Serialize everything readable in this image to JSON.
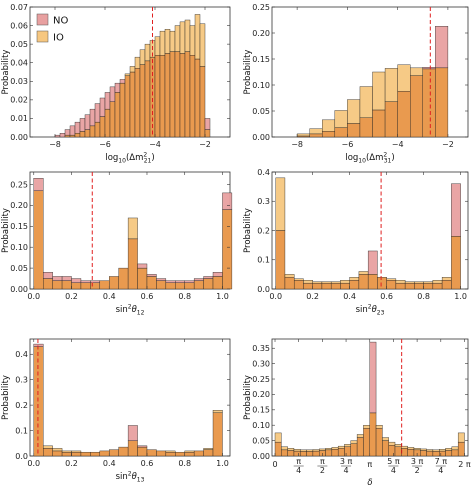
{
  "legend": {
    "entries": [
      {
        "name": "NO",
        "color": "#e8a0a0"
      },
      {
        "name": "IO",
        "color": "#f6c780"
      }
    ]
  },
  "colors": {
    "no_fill": "#e8a0a0",
    "io_fill": "#f6c780",
    "overlap_fill": "#e99a4f",
    "bar_edge": "#222222",
    "ref_line": "#e02020"
  },
  "chart_data": [
    {
      "type": "bar",
      "position": "top-left",
      "ylabel": "Probability",
      "xlabel": "log10(Δm²21)",
      "xlim": [
        -9.0,
        -1.0
      ],
      "ylim": [
        0,
        0.07
      ],
      "xticks": [
        -8,
        -6,
        -4,
        -2
      ],
      "xtick_labels": [
        "−8",
        "−6",
        "−4",
        "−2"
      ],
      "yticks": [
        0,
        0.01,
        0.02,
        0.03,
        0.04,
        0.05,
        0.06,
        0.07
      ],
      "ytick_labels": [
        "0.00",
        "0.01",
        "0.02",
        "0.03",
        "0.04",
        "0.05",
        "0.06",
        "0.07"
      ],
      "bin_edges": [
        -8.0,
        -7.8,
        -7.6,
        -7.4,
        -7.2,
        -7.0,
        -6.8,
        -6.6,
        -6.4,
        -6.2,
        -6.0,
        -5.8,
        -5.6,
        -5.4,
        -5.2,
        -5.0,
        -4.8,
        -4.6,
        -4.4,
        -4.2,
        -4.0,
        -3.8,
        -3.6,
        -3.4,
        -3.2,
        -3.0,
        -2.8,
        -2.6,
        -2.4,
        -2.2,
        -2.0,
        -1.8
      ],
      "series": [
        {
          "name": "NO",
          "values": [
            0.001,
            0.002,
            0.004,
            0.006,
            0.008,
            0.01,
            0.012,
            0.015,
            0.018,
            0.021,
            0.024,
            0.027,
            0.029,
            0.031,
            0.033,
            0.035,
            0.037,
            0.039,
            0.041,
            0.043,
            0.044,
            0.044,
            0.045,
            0.046,
            0.046,
            0.045,
            0.046,
            0.044,
            0.042,
            0.038,
            0.01
          ]
        },
        {
          "name": "IO",
          "values": [
            0.0,
            0.0,
            0.001,
            0.001,
            0.002,
            0.003,
            0.004,
            0.006,
            0.008,
            0.011,
            0.015,
            0.019,
            0.024,
            0.029,
            0.034,
            0.038,
            0.043,
            0.047,
            0.05,
            0.052,
            0.054,
            0.057,
            0.058,
            0.057,
            0.06,
            0.062,
            0.063,
            0.06,
            0.066,
            0.061,
            0.004
          ]
        }
      ],
      "ref_line_x": -4.1
    },
    {
      "type": "bar",
      "position": "top-right",
      "ylabel": "Probability",
      "xlabel": "log10(Δm²31)",
      "xlim": [
        -9.0,
        -1.2
      ],
      "ylim": [
        0,
        0.25
      ],
      "xticks": [
        -8,
        -6,
        -4,
        -2
      ],
      "xtick_labels": [
        "−8",
        "−6",
        "−4",
        "−2"
      ],
      "yticks": [
        0,
        0.05,
        0.1,
        0.15,
        0.2,
        0.25
      ],
      "ytick_labels": [
        "0.00",
        "0.05",
        "0.10",
        "0.15",
        "0.20",
        "0.25"
      ],
      "bin_edges": [
        -8.0,
        -7.5,
        -7.0,
        -6.5,
        -6.0,
        -5.5,
        -5.0,
        -4.5,
        -4.0,
        -3.5,
        -3.0,
        -2.5,
        -2.0
      ],
      "series": [
        {
          "name": "NO",
          "values": [
            0.002,
            0.006,
            0.011,
            0.018,
            0.026,
            0.037,
            0.052,
            0.068,
            0.088,
            0.118,
            0.134,
            0.213
          ]
        },
        {
          "name": "IO",
          "values": [
            0.006,
            0.016,
            0.033,
            0.051,
            0.072,
            0.097,
            0.125,
            0.132,
            0.139,
            0.133,
            0.131,
            0.133
          ]
        }
      ],
      "ref_line_x": -2.7
    },
    {
      "type": "bar",
      "position": "middle-left",
      "ylabel": "Probability",
      "xlabel": "sin²θ12",
      "xlim": [
        -0.02,
        1.04
      ],
      "ylim": [
        0,
        0.28
      ],
      "xticks": [
        0,
        0.2,
        0.4,
        0.6,
        0.8,
        1.0
      ],
      "xtick_labels": [
        "0.0",
        "0.2",
        "0.4",
        "0.6",
        "0.8",
        "1.0"
      ],
      "yticks": [
        0,
        0.05,
        0.1,
        0.15,
        0.2,
        0.25
      ],
      "ytick_labels": [
        "0.00",
        "0.05",
        "0.10",
        "0.15",
        "0.20",
        "0.25"
      ],
      "bin_edges": [
        0.0,
        0.05,
        0.1,
        0.15,
        0.2,
        0.25,
        0.3,
        0.35,
        0.4,
        0.45,
        0.5,
        0.55,
        0.6,
        0.65,
        0.7,
        0.75,
        0.8,
        0.85,
        0.9,
        0.95,
        1.0,
        1.05
      ],
      "series": [
        {
          "name": "NO",
          "values": [
            0.265,
            0.04,
            0.03,
            0.03,
            0.025,
            0.02,
            0.02,
            0.02,
            0.03,
            0.05,
            0.12,
            0.06,
            0.035,
            0.025,
            0.02,
            0.02,
            0.02,
            0.025,
            0.03,
            0.04,
            0.23
          ]
        },
        {
          "name": "IO",
          "values": [
            0.235,
            0.025,
            0.02,
            0.02,
            0.015,
            0.015,
            0.015,
            0.02,
            0.03,
            0.05,
            0.17,
            0.05,
            0.03,
            0.02,
            0.015,
            0.015,
            0.015,
            0.02,
            0.025,
            0.03,
            0.19
          ]
        }
      ],
      "ref_line_x": 0.31
    },
    {
      "type": "bar",
      "position": "middle-right",
      "ylabel": "Probability",
      "xlabel": "sin²θ23",
      "xlim": [
        -0.02,
        1.04
      ],
      "ylim": [
        0,
        0.4
      ],
      "xticks": [
        0,
        0.2,
        0.4,
        0.6,
        0.8,
        1.0
      ],
      "xtick_labels": [
        "0.0",
        "0.2",
        "0.4",
        "0.6",
        "0.8",
        "1.0"
      ],
      "yticks": [
        0,
        0.1,
        0.2,
        0.3,
        0.4
      ],
      "ytick_labels": [
        "0.0",
        "0.1",
        "0.2",
        "0.3",
        "0.4"
      ],
      "bin_edges": [
        0.0,
        0.05,
        0.1,
        0.15,
        0.2,
        0.25,
        0.3,
        0.35,
        0.4,
        0.45,
        0.5,
        0.55,
        0.6,
        0.65,
        0.7,
        0.75,
        0.8,
        0.85,
        0.9,
        0.95,
        1.0
      ],
      "series": [
        {
          "name": "NO",
          "values": [
            0.2,
            0.04,
            0.03,
            0.02,
            0.02,
            0.02,
            0.02,
            0.02,
            0.03,
            0.05,
            0.13,
            0.04,
            0.03,
            0.02,
            0.02,
            0.02,
            0.02,
            0.02,
            0.03,
            0.36
          ]
        },
        {
          "name": "IO",
          "values": [
            0.38,
            0.05,
            0.035,
            0.03,
            0.025,
            0.025,
            0.025,
            0.03,
            0.04,
            0.06,
            0.05,
            0.04,
            0.035,
            0.03,
            0.025,
            0.025,
            0.025,
            0.03,
            0.04,
            0.18
          ]
        }
      ],
      "ref_line_x": 0.57
    },
    {
      "type": "bar",
      "position": "bottom-left",
      "ylabel": "Probability",
      "xlabel": "sin²θ13",
      "xlim": [
        -0.02,
        1.04
      ],
      "ylim": [
        0,
        0.46
      ],
      "xticks": [
        0,
        0.2,
        0.4,
        0.6,
        0.8,
        1.0
      ],
      "xtick_labels": [
        "0.0",
        "0.2",
        "0.4",
        "0.6",
        "0.8",
        "1.0"
      ],
      "yticks": [
        0,
        0.1,
        0.2,
        0.3,
        0.4
      ],
      "ytick_labels": [
        "0.0",
        "0.1",
        "0.2",
        "0.3",
        "0.4"
      ],
      "bin_edges": [
        0.0,
        0.05,
        0.1,
        0.15,
        0.2,
        0.25,
        0.3,
        0.35,
        0.4,
        0.45,
        0.5,
        0.55,
        0.6,
        0.65,
        0.7,
        0.75,
        0.8,
        0.85,
        0.9,
        0.95,
        1.0
      ],
      "series": [
        {
          "name": "NO",
          "values": [
            0.44,
            0.03,
            0.02,
            0.015,
            0.015,
            0.015,
            0.015,
            0.02,
            0.025,
            0.035,
            0.12,
            0.04,
            0.025,
            0.02,
            0.015,
            0.015,
            0.015,
            0.02,
            0.025,
            0.17
          ]
        },
        {
          "name": "IO",
          "values": [
            0.43,
            0.04,
            0.03,
            0.02,
            0.02,
            0.015,
            0.015,
            0.02,
            0.025,
            0.035,
            0.06,
            0.035,
            0.025,
            0.02,
            0.02,
            0.015,
            0.02,
            0.02,
            0.03,
            0.18
          ]
        }
      ],
      "ref_line_x": 0.022
    },
    {
      "type": "bar",
      "position": "bottom-right",
      "ylabel": "Probability",
      "xlabel": "δ",
      "xlim": [
        -0.1,
        6.4
      ],
      "ylim": [
        0,
        0.38
      ],
      "xticks": [
        0,
        0.785398,
        1.570796,
        2.356194,
        3.141593,
        3.926991,
        4.712389,
        5.497787,
        6.283185
      ],
      "xtick_labels": [
        {
          "type": "text",
          "text": "0"
        },
        {
          "type": "frac",
          "num": "π",
          "den": "4"
        },
        {
          "type": "frac",
          "num": "π",
          "den": "2"
        },
        {
          "type": "frac",
          "num": "3 π",
          "den": "4"
        },
        {
          "type": "text",
          "text": "π"
        },
        {
          "type": "frac",
          "num": "5 π",
          "den": "4"
        },
        {
          "type": "frac",
          "num": "3 π",
          "den": "2"
        },
        {
          "type": "frac",
          "num": "7 π",
          "den": "4"
        },
        {
          "type": "text",
          "text": "2 π"
        }
      ],
      "yticks": [
        0,
        0.05,
        0.1,
        0.15,
        0.2,
        0.25,
        0.3,
        0.35
      ],
      "ytick_labels": [
        "0.00",
        "0.05",
        "0.10",
        "0.15",
        "0.20",
        "0.25",
        "0.30",
        "0.35"
      ],
      "bin_edges": [
        0.0,
        0.2094,
        0.4189,
        0.6283,
        0.8378,
        1.0472,
        1.2566,
        1.4661,
        1.6755,
        1.885,
        2.0944,
        2.3038,
        2.5133,
        2.7227,
        2.9322,
        3.1416,
        3.351,
        3.5605,
        3.7699,
        3.9794,
        4.1888,
        4.3982,
        4.6077,
        4.8171,
        5.0265,
        5.236,
        5.4454,
        5.6549,
        5.8643,
        6.0737,
        6.2832
      ],
      "series": [
        {
          "name": "NO",
          "values": [
            0.045,
            0.02,
            0.018,
            0.016,
            0.015,
            0.015,
            0.016,
            0.018,
            0.02,
            0.022,
            0.025,
            0.03,
            0.04,
            0.06,
            0.09,
            0.37,
            0.09,
            0.05,
            0.035,
            0.03,
            0.025,
            0.022,
            0.02,
            0.018,
            0.016,
            0.015,
            0.016,
            0.018,
            0.02,
            0.045
          ]
        },
        {
          "name": "IO",
          "values": [
            0.075,
            0.03,
            0.025,
            0.022,
            0.02,
            0.02,
            0.021,
            0.023,
            0.025,
            0.028,
            0.032,
            0.038,
            0.05,
            0.07,
            0.1,
            0.14,
            0.1,
            0.06,
            0.045,
            0.038,
            0.032,
            0.028,
            0.025,
            0.023,
            0.021,
            0.02,
            0.022,
            0.025,
            0.03,
            0.075
          ]
        }
      ],
      "ref_line_x": 4.2
    }
  ]
}
